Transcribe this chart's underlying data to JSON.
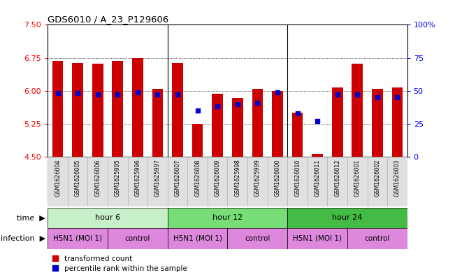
{
  "title": "GDS6010 / A_23_P129606",
  "samples": [
    "GSM1626004",
    "GSM1626005",
    "GSM1626006",
    "GSM1625995",
    "GSM1625996",
    "GSM1625997",
    "GSM1626007",
    "GSM1626008",
    "GSM1626009",
    "GSM1625998",
    "GSM1625999",
    "GSM1626000",
    "GSM1626010",
    "GSM1626011",
    "GSM1626012",
    "GSM1626001",
    "GSM1626002",
    "GSM1626003"
  ],
  "bar_values": [
    6.68,
    6.63,
    6.62,
    6.68,
    6.75,
    6.05,
    6.63,
    5.25,
    5.93,
    5.83,
    6.05,
    6.0,
    5.51,
    4.56,
    6.08,
    6.62,
    6.05,
    6.08
  ],
  "blue_dot_values": [
    48,
    48,
    47,
    47,
    49,
    47,
    47,
    35,
    38,
    40,
    41,
    49,
    33,
    27,
    47,
    47,
    45,
    45
  ],
  "bar_bottom": 4.5,
  "ylim_left": [
    4.5,
    7.5
  ],
  "ylim_right": [
    0,
    100
  ],
  "yticks_left": [
    4.5,
    5.25,
    6.0,
    6.75,
    7.5
  ],
  "yticks_right": [
    0,
    25,
    50,
    75,
    100
  ],
  "bar_color": "#cc0000",
  "dot_color": "#0000cc",
  "time_colors": [
    "#c8f0c8",
    "#77dd77",
    "#44bb44"
  ],
  "time_groups": [
    {
      "label": "hour 6",
      "start": 0,
      "end": 6
    },
    {
      "label": "hour 12",
      "start": 6,
      "end": 12
    },
    {
      "label": "hour 24",
      "start": 12,
      "end": 18
    }
  ],
  "infect_color": "#dd88dd",
  "infect_groups": [
    {
      "label": "H5N1 (MOI 1)",
      "start": 0,
      "end": 3
    },
    {
      "label": "control",
      "start": 3,
      "end": 6
    },
    {
      "label": "H5N1 (MOI 1)",
      "start": 6,
      "end": 9
    },
    {
      "label": "control",
      "start": 9,
      "end": 12
    },
    {
      "label": "H5N1 (MOI 1)",
      "start": 12,
      "end": 15
    },
    {
      "label": "control",
      "start": 15,
      "end": 18
    }
  ],
  "legend_items": [
    {
      "label": "transformed count",
      "color": "#cc0000"
    },
    {
      "label": "percentile rank within the sample",
      "color": "#0000cc"
    }
  ],
  "time_label": "time",
  "infection_label": "infection",
  "group_seps": [
    6,
    12
  ]
}
